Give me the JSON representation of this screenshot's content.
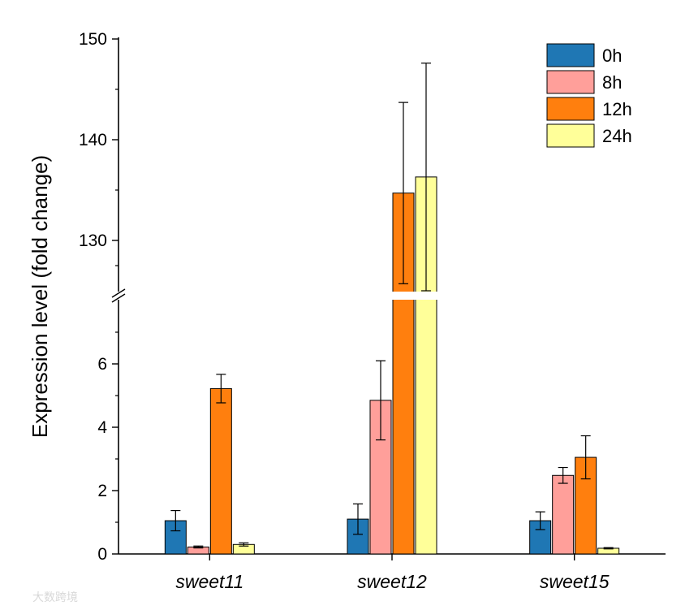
{
  "chart_data": {
    "type": "bar",
    "title": "",
    "xlabel": "",
    "ylabel": "Expression level (fold change)",
    "categories": [
      "sweet11",
      "sweet12",
      "sweet15"
    ],
    "broken_axis": {
      "lower_range": [
        0,
        8
      ],
      "upper_range": [
        125,
        150
      ],
      "lower_ticks": [
        0,
        2,
        4,
        6
      ],
      "upper_ticks": [
        130,
        140,
        150
      ]
    },
    "series": [
      {
        "name": "0h",
        "color": "#1f77b4",
        "values": [
          1.05,
          1.1,
          1.05
        ],
        "errors": [
          0.32,
          0.48,
          0.28
        ]
      },
      {
        "name": "8h",
        "color": "#ff9f9a",
        "values": [
          0.22,
          4.85,
          2.48
        ],
        "errors": [
          0.03,
          1.25,
          0.25
        ]
      },
      {
        "name": "12h",
        "color": "#ff7f0e",
        "values": [
          5.22,
          134.7,
          3.05
        ],
        "errors": [
          0.45,
          9.0,
          0.68
        ]
      },
      {
        "name": "24h",
        "color": "#ffff99",
        "values": [
          0.3,
          136.3,
          0.18
        ],
        "errors": [
          0.05,
          11.3,
          0.02
        ]
      }
    ],
    "legend_position": "top-right"
  },
  "watermark": "大数跨境"
}
